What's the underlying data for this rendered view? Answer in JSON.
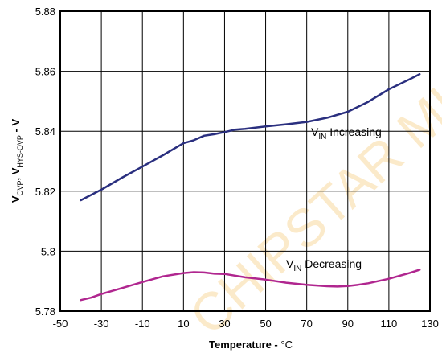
{
  "chart_data": {
    "type": "line",
    "xlabel_main": "Temperature - ",
    "xlabel_unit": "°C",
    "ylabel": {
      "v1": "V",
      "s1": "OVP",
      "sep": ", ",
      "v2": "V",
      "s2": "HYS-OVP",
      "tail": " - V"
    },
    "xlim": [
      -50,
      130
    ],
    "ylim": [
      5.78,
      5.88
    ],
    "xticks": [
      "-50",
      "-30",
      "-10",
      "10",
      "30",
      "50",
      "70",
      "90",
      "110",
      "130"
    ],
    "yticks": [
      "5.78",
      "5.8",
      "5.82",
      "5.84",
      "5.86",
      "5.88"
    ],
    "grid": true,
    "series": [
      {
        "name_main": "V",
        "name_sub": "IN",
        "name_tail": " Increasing",
        "color": "#2a2f7f",
        "x": [
          -40,
          -30,
          -20,
          -10,
          0,
          10,
          15,
          20,
          25,
          30,
          35,
          40,
          50,
          60,
          70,
          80,
          90,
          100,
          110,
          120,
          125
        ],
        "y": [
          5.817,
          5.8205,
          5.8245,
          5.8282,
          5.832,
          5.836,
          5.837,
          5.8385,
          5.839,
          5.8397,
          5.8405,
          5.8408,
          5.8416,
          5.8423,
          5.8431,
          5.8445,
          5.8465,
          5.8498,
          5.854,
          5.8573,
          5.859
        ]
      },
      {
        "name_main": "V",
        "name_sub": "IN",
        "name_tail": " Decreasing",
        "color": "#b0268f",
        "x": [
          -40,
          -35,
          -30,
          -20,
          -10,
          0,
          10,
          15,
          20,
          25,
          30,
          40,
          50,
          60,
          70,
          80,
          85,
          90,
          95,
          100,
          110,
          120,
          125
        ],
        "y": [
          5.7837,
          5.7845,
          5.7857,
          5.7877,
          5.7897,
          5.7916,
          5.7927,
          5.793,
          5.7929,
          5.7925,
          5.7924,
          5.7913,
          5.7905,
          5.7895,
          5.7888,
          5.7883,
          5.7882,
          5.7884,
          5.7888,
          5.7893,
          5.7908,
          5.7927,
          5.7938
        ]
      }
    ]
  },
  "watermark": "CHIPSTAR MICRO"
}
